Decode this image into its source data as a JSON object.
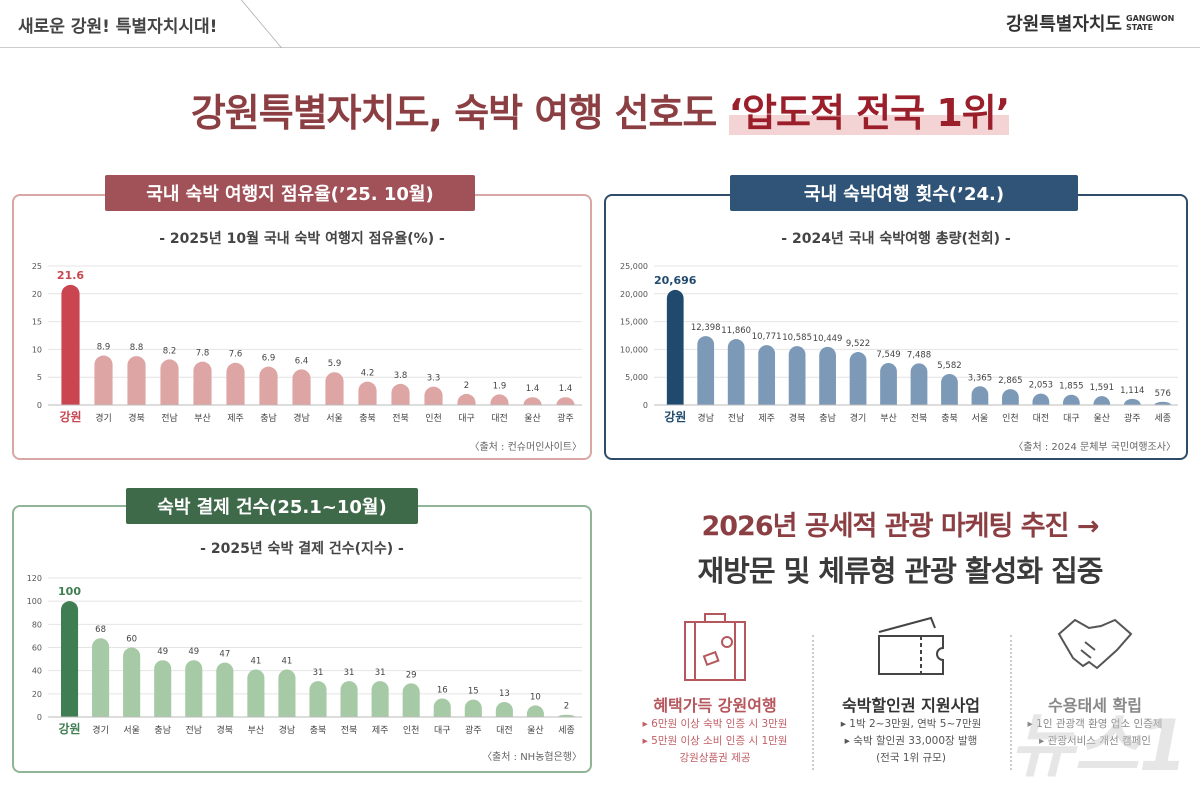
{
  "header": {
    "slogan": "새로운 강원! 특별자치시대!",
    "logo": "강원특별자치도",
    "logo_en": "GANGWON STATE"
  },
  "title": {
    "main": "강원특별자치도, 숙박 여행 선호도 ",
    "highlight": "‘압도적 전국 1위’"
  },
  "colors": {
    "red": "#c9595f",
    "red_bar": "#dda5a4",
    "navy": "#1f4a6e",
    "blue_bar": "#7d99b8",
    "green": "#3f7d52",
    "green_bar": "#a6c9a6"
  },
  "chart_data": [
    {
      "type": "bar",
      "tab": "국내 숙박 여행지 점유율(’25. 10월)",
      "title": "- 2025년 10월 국내 숙박 여행지 점유율(%) -",
      "source": "〈출처 : 컨슈머인사이트〉",
      "categories": [
        "강원",
        "경기",
        "경북",
        "전남",
        "부산",
        "제주",
        "충남",
        "경남",
        "서울",
        "충북",
        "전북",
        "인천",
        "대구",
        "대전",
        "울산",
        "광주"
      ],
      "values": [
        21.6,
        8.9,
        8.8,
        8.2,
        7.8,
        7.6,
        6.9,
        6.4,
        5.9,
        4.2,
        3.8,
        3.3,
        2,
        1.9,
        1.4,
        1.4
      ],
      "labels": [
        "21.6",
        "8.9",
        "8.8",
        "8.2",
        "7.8",
        "7.6",
        "6.9",
        "6.4",
        "5.9",
        "4.2",
        "3.8",
        "3.3",
        "2",
        "1.9",
        "1.4",
        "1.4"
      ],
      "yticks": [
        "0",
        "5",
        "10",
        "15",
        "20",
        "25"
      ],
      "ylim": [
        0,
        25
      ],
      "grid": true
    },
    {
      "type": "bar",
      "tab": "국내 숙박여행 횟수(’24.)",
      "title": "- 2024년 국내 숙박여행 총량(천회) -",
      "source": "〈출처 : 2024 문체부 국민여행조사〉",
      "categories": [
        "강원",
        "경남",
        "전남",
        "제주",
        "경북",
        "충남",
        "경기",
        "부산",
        "전북",
        "충북",
        "서울",
        "인천",
        "대전",
        "대구",
        "울산",
        "광주",
        "세종"
      ],
      "values": [
        20696,
        12398,
        11860,
        10771,
        10585,
        10449,
        9522,
        7549,
        7488,
        5582,
        3365,
        2865,
        2053,
        1855,
        1591,
        1114,
        576
      ],
      "labels": [
        "20,696",
        "12,398",
        "11,860",
        "10,771",
        "10,585",
        "10,449",
        "9,522",
        "7,549",
        "7,488",
        "5,582",
        "3,365",
        "2,865",
        "2,053",
        "1,855",
        "1,591",
        "1,114",
        "576"
      ],
      "yticks": [
        "0",
        "5,000",
        "10,000",
        "15,000",
        "20,000",
        "25,000"
      ],
      "ylim": [
        0,
        25000
      ],
      "grid": true
    },
    {
      "type": "bar",
      "tab": "숙박 결제 건수(25.1~10월)",
      "title": "- 2025년 숙박 결제 건수(지수) -",
      "source": "〈출처 : NH농협은행〉",
      "categories": [
        "강원",
        "경기",
        "서울",
        "충남",
        "전남",
        "경북",
        "부산",
        "경남",
        "충북",
        "전북",
        "제주",
        "인천",
        "대구",
        "광주",
        "대전",
        "울산",
        "세종"
      ],
      "values": [
        100,
        68,
        60,
        49,
        49,
        47,
        41,
        41,
        31,
        31,
        31,
        29,
        16,
        15,
        13,
        10,
        2
      ],
      "labels": [
        "100",
        "68",
        "60",
        "49",
        "49",
        "47",
        "41",
        "41",
        "31",
        "31",
        "31",
        "29",
        "16",
        "15",
        "13",
        "10",
        "2"
      ],
      "yticks": [
        "0",
        "20",
        "40",
        "60",
        "80",
        "100",
        "120"
      ],
      "ylim": [
        0,
        120
      ],
      "grid": true
    }
  ],
  "message": {
    "line1": "2026년 공세적 관광 마케팅 추진 →",
    "line2": "재방문 및 체류형 관광 활성화 집중"
  },
  "items": [
    {
      "icon": "suitcase-icon",
      "title": "혜택가득 강원여행",
      "lines": [
        "▸ 6만원 이상 숙박 인증 시 3만원",
        "▸ 5만원 이상 소비 인증 시 1만원",
        "강원상품권 제공"
      ]
    },
    {
      "icon": "ticket-icon",
      "title": "숙박할인권 지원사업",
      "lines": [
        "▸ 1박 2~3만원, 연박 5~7만원",
        "▸ 숙박 할인권 33,000장 발행",
        "(전국 1위 규모)"
      ]
    },
    {
      "icon": "handshake-icon",
      "title": "수용태세 확립",
      "lines": [
        "▸ 1인 관광객 환영 업소 인증제",
        "▸ 관광서비스 개선 캠페인"
      ]
    }
  ],
  "watermark": "뉴스1"
}
